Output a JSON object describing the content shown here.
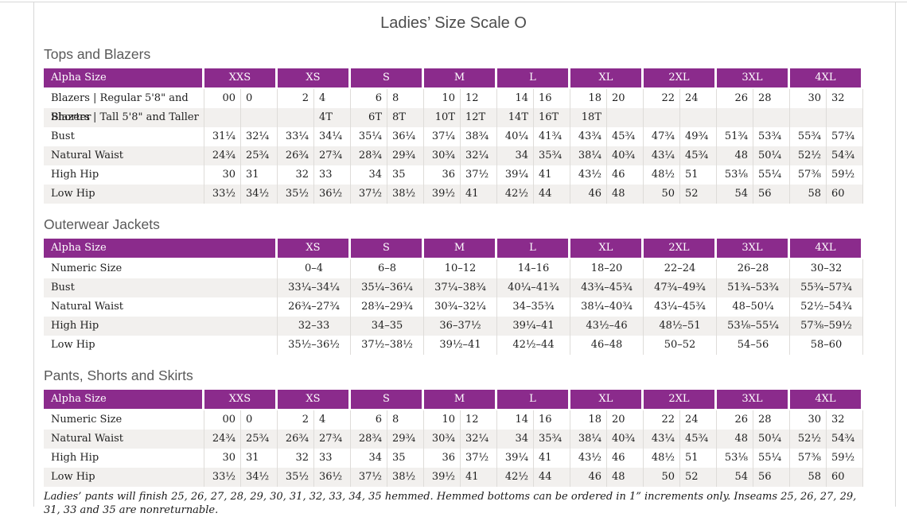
{
  "page": {
    "title": "Ladies’ Size Scale O",
    "footnote": "Ladies’ pants will finish 25, 26, 27, 28, 29, 30, 31, 32, 33, 34, 35 hemmed. Hemmed bottoms can be ordered in 1” increments only. Inseams 25, 26, 27, 29, 31, 33 and 35 are nonreturnable."
  },
  "colors": {
    "header_purple": "#8b2b8c",
    "row_stripe": "#f2f0ee",
    "heading_gray": "#595959",
    "divider": "#dedcd9"
  },
  "tables": [
    {
      "section": "Tops and Blazers",
      "type": "paired",
      "header_label": "Alpha Size",
      "sizes": [
        "XXS",
        "XS",
        "S",
        "M",
        "L",
        "XL",
        "2XL",
        "3XL",
        "4XL"
      ],
      "rows": [
        {
          "label": "Blazers | Regular 5'8\" and Shorter",
          "cells": [
            [
              "00",
              "0"
            ],
            [
              "2",
              "4"
            ],
            [
              "6",
              "8"
            ],
            [
              "10",
              "12"
            ],
            [
              "14",
              "16"
            ],
            [
              "18",
              "20"
            ],
            [
              "22",
              "24"
            ],
            [
              "26",
              "28"
            ],
            [
              "30",
              "32"
            ]
          ]
        },
        {
          "label": "Blazers | Tall 5'8\" and Taller",
          "cells": [
            [
              "",
              ""
            ],
            [
              "",
              "4T"
            ],
            [
              "6T",
              "8T"
            ],
            [
              "10T",
              "12T"
            ],
            [
              "14T",
              "16T"
            ],
            [
              "18T",
              ""
            ],
            [
              "",
              ""
            ],
            [
              "",
              ""
            ],
            [
              "",
              ""
            ]
          ]
        },
        {
          "label": "Bust",
          "cells": [
            [
              "31¼",
              "32¼"
            ],
            [
              "33¼",
              "34¼"
            ],
            [
              "35¼",
              "36¼"
            ],
            [
              "37¼",
              "38¾"
            ],
            [
              "40¼",
              "41¾"
            ],
            [
              "43¾",
              "45¾"
            ],
            [
              "47¾",
              "49¾"
            ],
            [
              "51¾",
              "53¾"
            ],
            [
              "55¾",
              "57¾"
            ]
          ]
        },
        {
          "label": "Natural Waist",
          "cells": [
            [
              "24¾",
              "25¾"
            ],
            [
              "26¾",
              "27¾"
            ],
            [
              "28¾",
              "29¾"
            ],
            [
              "30¾",
              "32¼"
            ],
            [
              "34",
              "35¾"
            ],
            [
              "38¼",
              "40¾"
            ],
            [
              "43¼",
              "45¾"
            ],
            [
              "48",
              "50¼"
            ],
            [
              "52½",
              "54¾"
            ]
          ]
        },
        {
          "label": "High Hip",
          "cells": [
            [
              "30",
              "31"
            ],
            [
              "32",
              "33"
            ],
            [
              "34",
              "35"
            ],
            [
              "36",
              "37½"
            ],
            [
              "39¼",
              "41"
            ],
            [
              "43½",
              "46"
            ],
            [
              "48½",
              "51"
            ],
            [
              "53⅛",
              "55¼"
            ],
            [
              "57⅜",
              "59½"
            ]
          ]
        },
        {
          "label": "Low Hip",
          "cells": [
            [
              "33½",
              "34½"
            ],
            [
              "35½",
              "36½"
            ],
            [
              "37½",
              "38½"
            ],
            [
              "39½",
              "41"
            ],
            [
              "42½",
              "44"
            ],
            [
              "46",
              "48"
            ],
            [
              "50",
              "52"
            ],
            [
              "54",
              "56"
            ],
            [
              "58",
              "60"
            ]
          ]
        }
      ]
    },
    {
      "section": "Outerwear Jackets",
      "type": "range",
      "header_label": "Alpha Size",
      "sizes": [
        "XS",
        "S",
        "M",
        "L",
        "XL",
        "2XL",
        "3XL",
        "4XL"
      ],
      "rows": [
        {
          "label": "Numeric Size",
          "cells": [
            "0–4",
            "6–8",
            "10–12",
            "14–16",
            "18–20",
            "22–24",
            "26–28",
            "30–32"
          ]
        },
        {
          "label": "Bust",
          "cells": [
            "33¼–34¼",
            "35¼–36¼",
            "37¼–38¾",
            "40¼–41¾",
            "43¾–45¾",
            "47¾–49¾",
            "51¾–53¾",
            "55¾–57¾"
          ]
        },
        {
          "label": "Natural Waist",
          "cells": [
            "26¾–27¾",
            "28¾–29¾",
            "30¾–32¼",
            "34–35¾",
            "38¼–40¾",
            "43¼–45¾",
            "48–50¼",
            "52½–54¾"
          ]
        },
        {
          "label": "High Hip",
          "cells": [
            "32–33",
            "34–35",
            "36–37½",
            "39¼–41",
            "43½–46",
            "48½–51",
            "53⅛–55¼",
            "57⅜–59½"
          ]
        },
        {
          "label": "Low Hip",
          "cells": [
            "35½–36½",
            "37½–38½",
            "39½–41",
            "42½–44",
            "46–48",
            "50–52",
            "54–56",
            "58–60"
          ]
        }
      ]
    },
    {
      "section": "Pants, Shorts and Skirts",
      "type": "paired",
      "header_label": "Alpha Size",
      "sizes": [
        "XXS",
        "XS",
        "S",
        "M",
        "L",
        "XL",
        "2XL",
        "3XL",
        "4XL"
      ],
      "rows": [
        {
          "label": "Numeric Size",
          "cells": [
            [
              "00",
              "0"
            ],
            [
              "2",
              "4"
            ],
            [
              "6",
              "8"
            ],
            [
              "10",
              "12"
            ],
            [
              "14",
              "16"
            ],
            [
              "18",
              "20"
            ],
            [
              "22",
              "24"
            ],
            [
              "26",
              "28"
            ],
            [
              "30",
              "32"
            ]
          ]
        },
        {
          "label": "Natural Waist",
          "cells": [
            [
              "24¾",
              "25¾"
            ],
            [
              "26¾",
              "27¾"
            ],
            [
              "28¾",
              "29¾"
            ],
            [
              "30¾",
              "32¼"
            ],
            [
              "34",
              "35¾"
            ],
            [
              "38¼",
              "40¾"
            ],
            [
              "43¼",
              "45¾"
            ],
            [
              "48",
              "50¼"
            ],
            [
              "52½",
              "54¾"
            ]
          ]
        },
        {
          "label": "High Hip",
          "cells": [
            [
              "30",
              "31"
            ],
            [
              "32",
              "33"
            ],
            [
              "34",
              "35"
            ],
            [
              "36",
              "37½"
            ],
            [
              "39¼",
              "41"
            ],
            [
              "43½",
              "46"
            ],
            [
              "48½",
              "51"
            ],
            [
              "53⅛",
              "55¼"
            ],
            [
              "57⅜",
              "59½"
            ]
          ]
        },
        {
          "label": "Low Hip",
          "cells": [
            [
              "33½",
              "34½"
            ],
            [
              "35½",
              "36½"
            ],
            [
              "37½",
              "38½"
            ],
            [
              "39½",
              "41"
            ],
            [
              "42½",
              "44"
            ],
            [
              "46",
              "48"
            ],
            [
              "50",
              "52"
            ],
            [
              "54",
              "56"
            ],
            [
              "58",
              "60"
            ]
          ]
        }
      ]
    }
  ]
}
